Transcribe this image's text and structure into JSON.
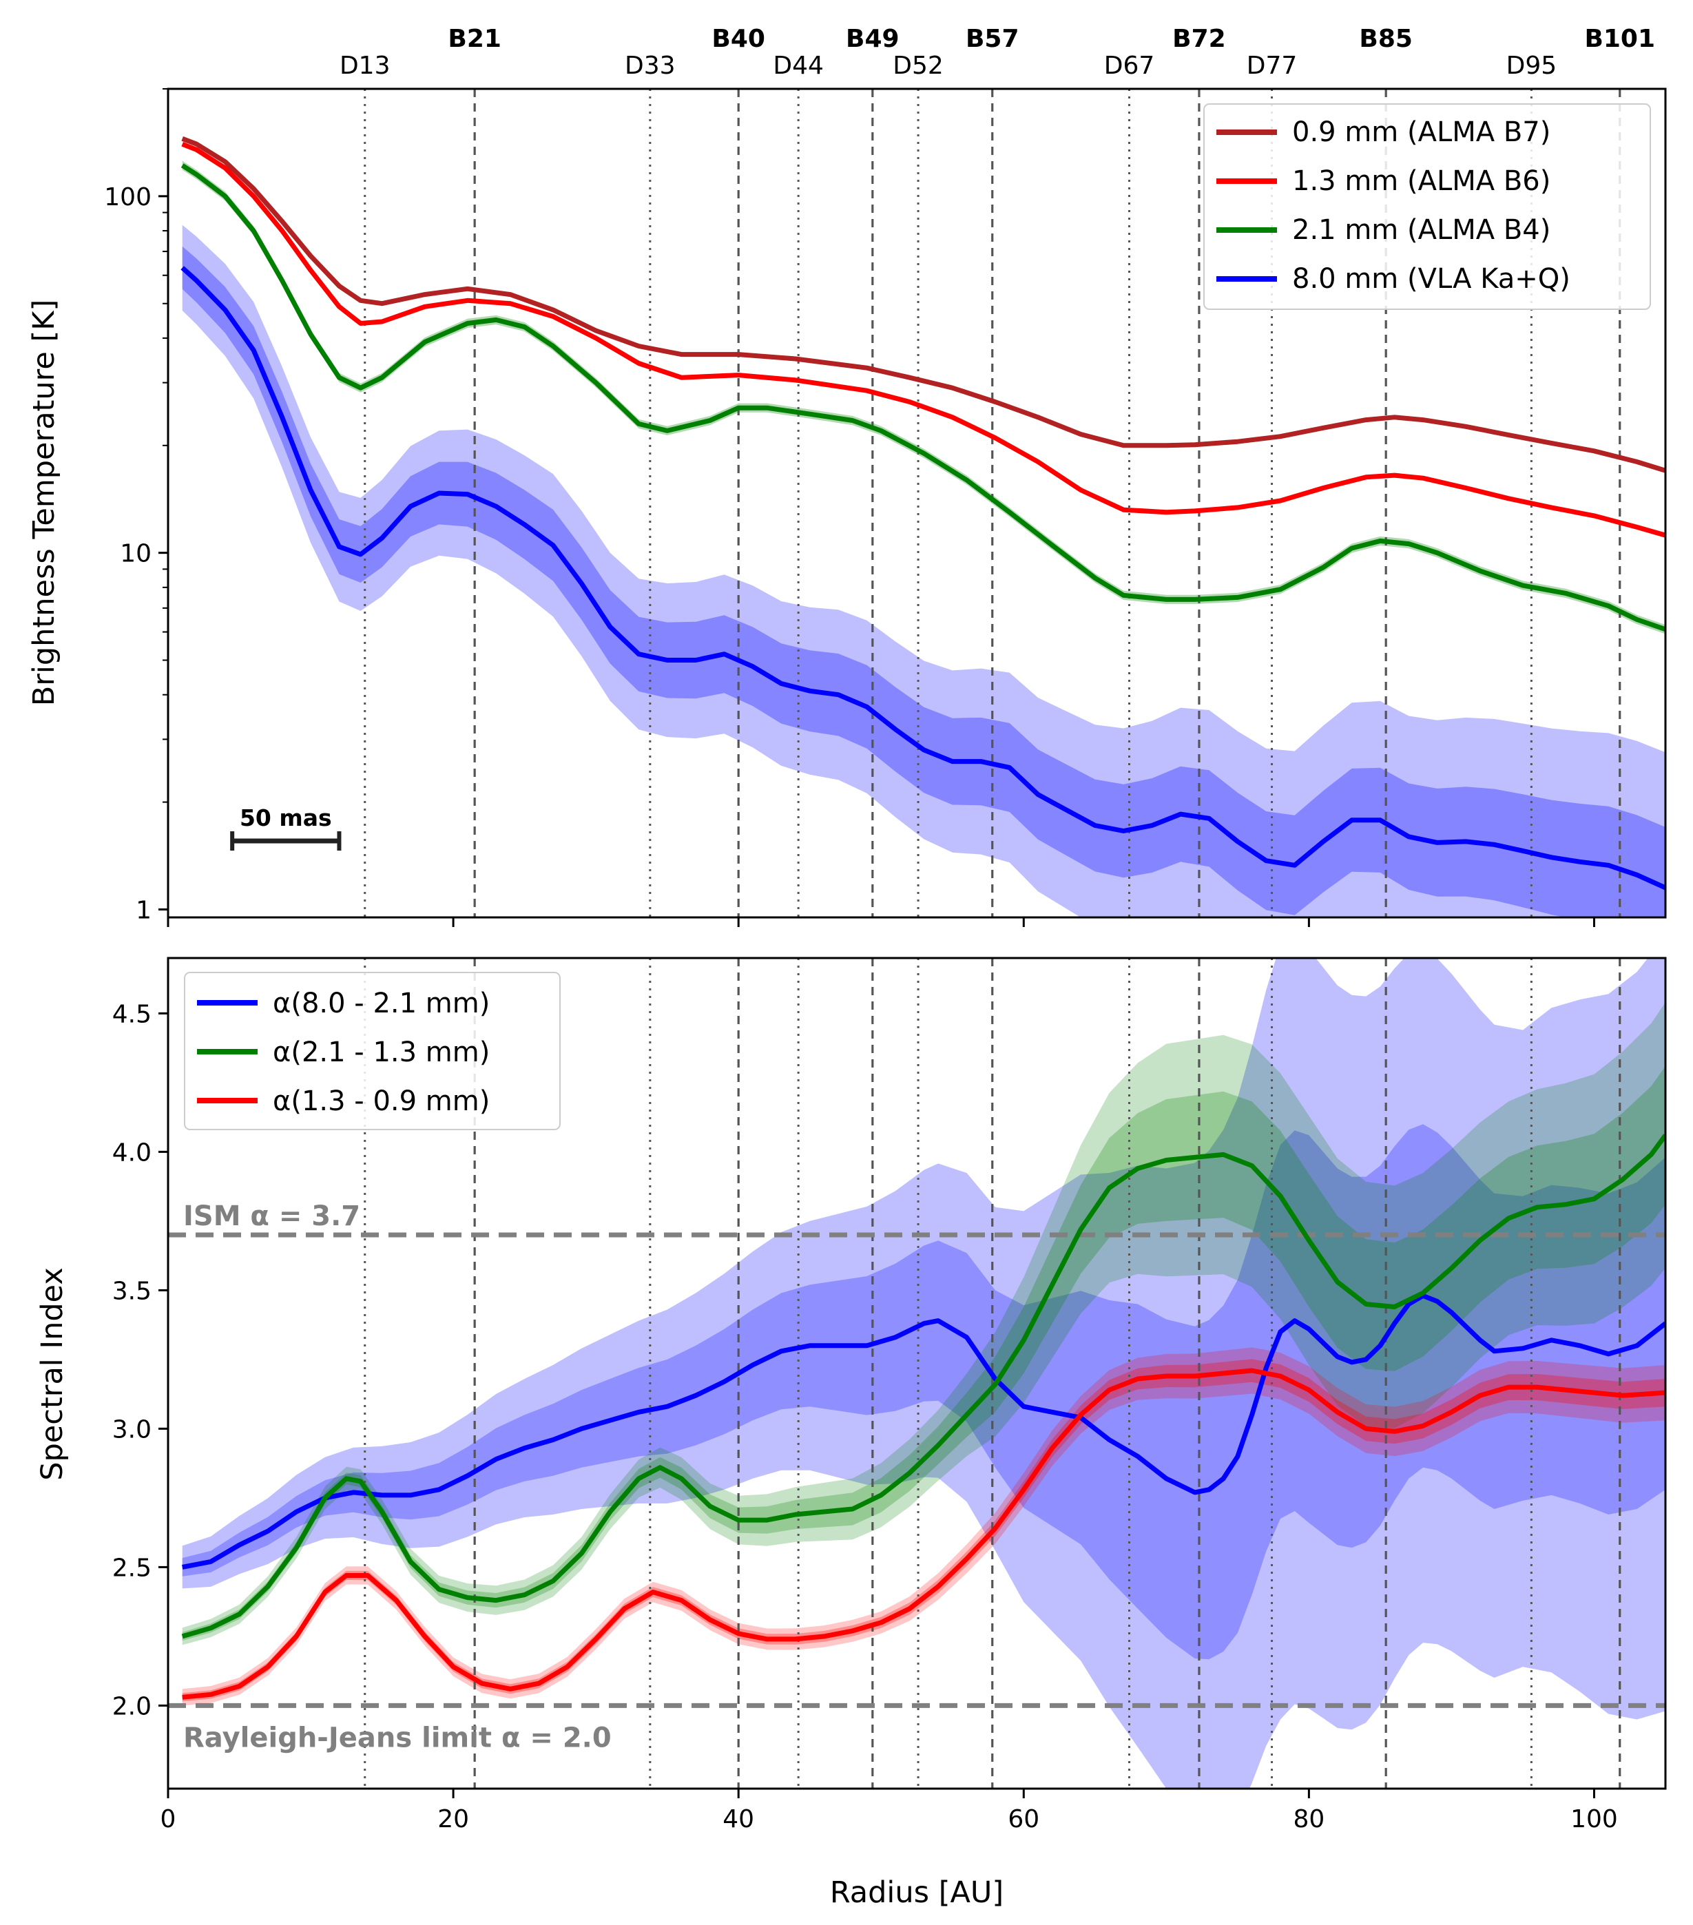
{
  "chart_data": [
    {
      "type": "line",
      "panel": "top",
      "xlabel": "",
      "ylabel": "Brightness Temperature [K]",
      "yscale": "log",
      "xlim": [
        0,
        105
      ],
      "ylim": [
        0.95,
        200
      ],
      "yticks": [
        1,
        10,
        100
      ],
      "ytick_labels": [
        "1",
        "10",
        "100"
      ],
      "xticks": [
        0,
        20,
        40,
        60,
        80,
        100
      ],
      "legend_position": "top-right",
      "series": [
        {
          "name": "0.9 mm (ALMA B7)",
          "color": "#b22222",
          "x": [
            1,
            2,
            4,
            6,
            8,
            10,
            12,
            13.5,
            15,
            18,
            21,
            24,
            27,
            30,
            33,
            36,
            40,
            44,
            49,
            52,
            55,
            58,
            61,
            64,
            67,
            70,
            72,
            75,
            78,
            81,
            84,
            86,
            88,
            91,
            94,
            97,
            100,
            103,
            105
          ],
          "y": [
            145,
            140,
            125,
            105,
            85,
            68,
            56,
            51,
            50,
            53,
            55,
            53,
            48,
            42,
            38,
            36,
            36,
            35,
            33,
            31,
            29,
            26.5,
            24,
            21.5,
            20,
            20,
            20.1,
            20.5,
            21.2,
            22.4,
            23.6,
            24,
            23.6,
            22.6,
            21.4,
            20.3,
            19.3,
            18,
            17
          ]
        },
        {
          "name": "1.3 mm (ALMA B6)",
          "color": "#ff0000",
          "x": [
            1,
            2,
            4,
            6,
            8,
            10,
            12,
            13.5,
            15,
            18,
            21,
            24,
            27,
            30,
            33,
            36,
            40,
            44,
            49,
            52,
            55,
            58,
            61,
            64,
            67,
            70,
            72,
            75,
            78,
            81,
            84,
            86,
            88,
            91,
            94,
            97,
            100,
            103,
            105
          ],
          "y": [
            140,
            135,
            120,
            100,
            80,
            62,
            49,
            44,
            44.5,
            49,
            51,
            50,
            46,
            40,
            34,
            31,
            31.5,
            30.5,
            28.5,
            26.5,
            24,
            21,
            18,
            15,
            13.2,
            13,
            13.1,
            13.4,
            14,
            15.2,
            16.3,
            16.5,
            16.2,
            15.2,
            14.2,
            13.4,
            12.7,
            11.8,
            11.2
          ]
        },
        {
          "name": "2.1 mm (ALMA B4)",
          "color": "#008000",
          "x": [
            1,
            2,
            4,
            6,
            8,
            10,
            12,
            13.5,
            15,
            18,
            21,
            23,
            25,
            27,
            30,
            33,
            35,
            38,
            40,
            42,
            45,
            48,
            50,
            53,
            56,
            59,
            62,
            65,
            67,
            70,
            72,
            75,
            78,
            81,
            83,
            85,
            87,
            89,
            92,
            95,
            98,
            101,
            103,
            105
          ],
          "y": [
            122,
            115,
            100,
            80,
            58,
            41,
            31,
            29,
            31,
            39,
            44,
            45,
            43,
            38,
            30,
            23,
            22,
            23.5,
            25.5,
            25.5,
            24.5,
            23.5,
            22,
            19,
            16,
            13,
            10.5,
            8.5,
            7.6,
            7.4,
            7.4,
            7.5,
            7.9,
            9.1,
            10.3,
            10.8,
            10.6,
            10,
            8.9,
            8.1,
            7.7,
            7.1,
            6.5,
            6.1
          ]
        },
        {
          "name": "8.0 mm (VLA Ka+Q)",
          "color": "#0000ff",
          "x": [
            1,
            2,
            4,
            6,
            8,
            10,
            12,
            13.5,
            15,
            17,
            19,
            21,
            23,
            25,
            27,
            29,
            31,
            33,
            35,
            37,
            39,
            41,
            43,
            45,
            47,
            49,
            51,
            53,
            55,
            57,
            59,
            61,
            63,
            65,
            67,
            69,
            71,
            73,
            75,
            77,
            79,
            81,
            83,
            85,
            87,
            89,
            91,
            93,
            95,
            97,
            99,
            101,
            103,
            105
          ],
          "y": [
            63,
            58,
            48,
            37,
            24,
            15,
            10.4,
            9.9,
            11,
            13.5,
            14.7,
            14.6,
            13.5,
            12,
            10.5,
            8.2,
            6.2,
            5.2,
            5,
            5,
            5.2,
            4.8,
            4.3,
            4.1,
            4,
            3.7,
            3.2,
            2.8,
            2.6,
            2.6,
            2.5,
            2.1,
            1.9,
            1.72,
            1.66,
            1.72,
            1.85,
            1.8,
            1.55,
            1.37,
            1.33,
            1.55,
            1.78,
            1.78,
            1.6,
            1.54,
            1.55,
            1.52,
            1.46,
            1.4,
            1.36,
            1.33,
            1.25,
            1.15
          ]
        }
      ],
      "bands": [
        {
          "series": "8.0 mm (VLA Ka+Q)",
          "sigma": 1,
          "frac": [
            0.06,
            0.1,
            0.12,
            0.14,
            0.17
          ]
        },
        {
          "series": "8.0 mm (VLA Ka+Q)",
          "sigma": 2,
          "frac": [
            0.12,
            0.2,
            0.25,
            0.32,
            0.38
          ]
        }
      ],
      "scalebar_label": "50 mas",
      "scalebar_au": [
        4.5,
        12
      ]
    },
    {
      "type": "line",
      "panel": "bottom",
      "xlabel": "Radius [AU]",
      "ylabel": "Spectral Index",
      "xlim": [
        0,
        105
      ],
      "ylim": [
        1.7,
        4.7
      ],
      "xticks": [
        0,
        20,
        40,
        60,
        80,
        100
      ],
      "xtick_labels": [
        "0",
        "20",
        "40",
        "60",
        "80",
        "100"
      ],
      "yticks": [
        2.0,
        2.5,
        3.0,
        3.5,
        4.0,
        4.5
      ],
      "ytick_labels": [
        "2.0",
        "2.5",
        "3.0",
        "3.5",
        "4.0",
        "4.5"
      ],
      "legend_position": "top-left",
      "series": [
        {
          "name": "α(8.0 - 2.1 mm)",
          "color": "#0000ff",
          "x": [
            1,
            3,
            5,
            7,
            9,
            11,
            13,
            15,
            17,
            19,
            21,
            23,
            25,
            27,
            29,
            31,
            33,
            35,
            37,
            39,
            41,
            43,
            45,
            47,
            49,
            51,
            53,
            54,
            56,
            58,
            60,
            62,
            64,
            66,
            68,
            70,
            72,
            73,
            74,
            75,
            76,
            77,
            78,
            79,
            80,
            81,
            82,
            83,
            84,
            85,
            86,
            87,
            88,
            89,
            90,
            91,
            92,
            93,
            95,
            97,
            99,
            101,
            103,
            105
          ],
          "y": [
            2.5,
            2.52,
            2.58,
            2.63,
            2.7,
            2.75,
            2.77,
            2.76,
            2.76,
            2.78,
            2.83,
            2.89,
            2.93,
            2.96,
            3.0,
            3.03,
            3.06,
            3.08,
            3.12,
            3.17,
            3.23,
            3.28,
            3.3,
            3.3,
            3.3,
            3.33,
            3.38,
            3.39,
            3.33,
            3.18,
            3.08,
            3.06,
            3.04,
            2.96,
            2.9,
            2.82,
            2.77,
            2.78,
            2.82,
            2.9,
            3.05,
            3.22,
            3.35,
            3.39,
            3.36,
            3.31,
            3.26,
            3.24,
            3.25,
            3.3,
            3.38,
            3.45,
            3.48,
            3.46,
            3.42,
            3.37,
            3.32,
            3.28,
            3.29,
            3.32,
            3.3,
            3.27,
            3.3,
            3.38
          ]
        },
        {
          "name": "α(2.1 - 1.3 mm)",
          "color": "#008000",
          "x": [
            1,
            3,
            5,
            7,
            9,
            11,
            12.5,
            13.5,
            15,
            17,
            19,
            21,
            23,
            25,
            27,
            29,
            31,
            33,
            34.5,
            36,
            38,
            40,
            42,
            44,
            46,
            48,
            50,
            52,
            54,
            56,
            58,
            60,
            62,
            64,
            66,
            68,
            70,
            72,
            74,
            76,
            78,
            80,
            82,
            84,
            86,
            88,
            90,
            92,
            94,
            96,
            98,
            100,
            102,
            104,
            105
          ],
          "y": [
            2.25,
            2.28,
            2.33,
            2.43,
            2.57,
            2.75,
            2.82,
            2.81,
            2.7,
            2.52,
            2.42,
            2.39,
            2.38,
            2.4,
            2.45,
            2.55,
            2.7,
            2.82,
            2.86,
            2.82,
            2.72,
            2.67,
            2.67,
            2.69,
            2.7,
            2.71,
            2.76,
            2.84,
            2.94,
            3.05,
            3.16,
            3.32,
            3.52,
            3.72,
            3.87,
            3.94,
            3.97,
            3.98,
            3.99,
            3.95,
            3.84,
            3.68,
            3.53,
            3.45,
            3.44,
            3.49,
            3.58,
            3.68,
            3.76,
            3.8,
            3.81,
            3.83,
            3.9,
            3.99,
            4.06
          ]
        },
        {
          "name": "α(1.3 - 0.9 mm)",
          "color": "#ff0000",
          "x": [
            1,
            3,
            5,
            7,
            9,
            11,
            12.5,
            14,
            16,
            18,
            20,
            22,
            24,
            26,
            28,
            30,
            32,
            34,
            36,
            38,
            40,
            42,
            44,
            46,
            48,
            50,
            52,
            54,
            56,
            58,
            60,
            62,
            64,
            66,
            68,
            70,
            72,
            74,
            76,
            78,
            80,
            82,
            84,
            86,
            88,
            90,
            92,
            94,
            96,
            98,
            100,
            102,
            105
          ],
          "y": [
            2.03,
            2.04,
            2.07,
            2.14,
            2.25,
            2.41,
            2.47,
            2.47,
            2.38,
            2.25,
            2.14,
            2.08,
            2.06,
            2.08,
            2.14,
            2.24,
            2.35,
            2.41,
            2.38,
            2.31,
            2.26,
            2.24,
            2.24,
            2.25,
            2.27,
            2.3,
            2.35,
            2.43,
            2.53,
            2.64,
            2.78,
            2.93,
            3.05,
            3.14,
            3.18,
            3.19,
            3.19,
            3.2,
            3.21,
            3.19,
            3.14,
            3.06,
            3.0,
            2.99,
            3.01,
            3.06,
            3.12,
            3.15,
            3.15,
            3.14,
            3.13,
            3.12,
            3.13
          ]
        }
      ],
      "bands": [
        {
          "series": "α(8.0 - 2.1 mm)",
          "sigma": 1,
          "halfwidth_by_x": [
            [
              0,
              0.03
            ],
            [
              10,
              0.06
            ],
            [
              25,
              0.12
            ],
            [
              45,
              0.22
            ],
            [
              58,
              0.32
            ],
            [
              68,
              0.55
            ],
            [
              80,
              0.7
            ],
            [
              95,
              0.55
            ],
            [
              105,
              0.6
            ]
          ]
        },
        {
          "series": "α(8.0 - 2.1 mm)",
          "sigma": 2,
          "halfwidth_by_x": [
            [
              0,
              0.07
            ],
            [
              10,
              0.14
            ],
            [
              25,
              0.25
            ],
            [
              45,
              0.45
            ],
            [
              58,
              0.62
            ],
            [
              68,
              1.05
            ],
            [
              78,
              1.4
            ],
            [
              95,
              1.15
            ],
            [
              105,
              1.4
            ]
          ]
        },
        {
          "series": "α(2.1 - 1.3 mm)",
          "sigma": 1,
          "halfwidth_by_x": [
            [
              0,
              0.015
            ],
            [
              30,
              0.03
            ],
            [
              55,
              0.07
            ],
            [
              70,
              0.22
            ],
            [
              80,
              0.24
            ],
            [
              95,
              0.22
            ],
            [
              105,
              0.25
            ]
          ]
        },
        {
          "series": "α(2.1 - 1.3 mm)",
          "sigma": 2,
          "halfwidth_by_x": [
            [
              0,
              0.03
            ],
            [
              30,
              0.06
            ],
            [
              55,
              0.13
            ],
            [
              70,
              0.42
            ],
            [
              80,
              0.45
            ],
            [
              95,
              0.42
            ],
            [
              105,
              0.48
            ]
          ]
        },
        {
          "series": "α(1.3 - 0.9 mm)",
          "sigma": 1,
          "halfwidth_by_x": [
            [
              0,
              0.015
            ],
            [
              50,
              0.02
            ],
            [
              70,
              0.04
            ],
            [
              105,
              0.05
            ]
          ]
        },
        {
          "series": "α(1.3 - 0.9 mm)",
          "sigma": 2,
          "halfwidth_by_x": [
            [
              0,
              0.03
            ],
            [
              50,
              0.04
            ],
            [
              70,
              0.08
            ],
            [
              105,
              0.1
            ]
          ]
        }
      ],
      "hlines": [
        {
          "y": 3.7,
          "label": "ISM α = 3.7"
        },
        {
          "y": 2.0,
          "label": "Rayleigh-Jeans limit α = 2.0"
        }
      ]
    }
  ],
  "features": [
    {
      "label": "D13",
      "x": 13.8,
      "kind": "gap"
    },
    {
      "label": "B21",
      "x": 21.5,
      "kind": "ring"
    },
    {
      "label": "D33",
      "x": 33.8,
      "kind": "gap"
    },
    {
      "label": "B40",
      "x": 40.0,
      "kind": "ring"
    },
    {
      "label": "D44",
      "x": 44.2,
      "kind": "gap"
    },
    {
      "label": "B49",
      "x": 49.4,
      "kind": "ring"
    },
    {
      "label": "D52",
      "x": 52.6,
      "kind": "gap"
    },
    {
      "label": "B57",
      "x": 57.8,
      "kind": "ring"
    },
    {
      "label": "D67",
      "x": 67.4,
      "kind": "gap"
    },
    {
      "label": "B72",
      "x": 72.3,
      "kind": "ring"
    },
    {
      "label": "D77",
      "x": 77.4,
      "kind": "gap"
    },
    {
      "label": "B85",
      "x": 85.4,
      "kind": "ring"
    },
    {
      "label": "D95",
      "x": 95.6,
      "kind": "gap"
    },
    {
      "label": "B101",
      "x": 101.8,
      "kind": "ring"
    }
  ],
  "styles": {
    "vline_color": "#555555",
    "hline_color": "#808080",
    "blue_band": "#0000ff",
    "green_band": "#008000",
    "red_band": "#ff0000"
  }
}
